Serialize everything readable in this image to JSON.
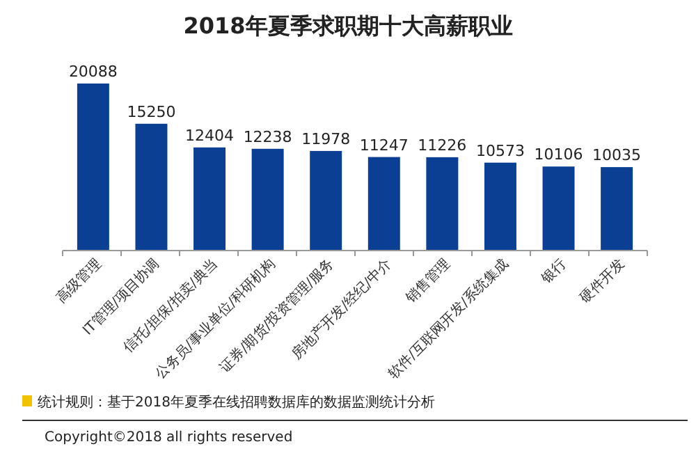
{
  "chart_data": {
    "type": "bar",
    "title": "2018年夏季求职期十大高薪职业",
    "categories": [
      "高级管理",
      "IT管理/项目协调",
      "信托/担保/拍卖/典当",
      "公务员/事业单位/科研机构",
      "证券/期货/投资管理/服务",
      "房地产开发/经纪/中介",
      "销售管理",
      "软件/互联网开发/系统集成",
      "银行",
      "硬件开发"
    ],
    "values": [
      20088,
      15250,
      12404,
      12238,
      11978,
      11247,
      11226,
      10573,
      10106,
      10035
    ],
    "color": "#0b3f94",
    "data_labels": true,
    "annotations": [
      "统计规则：基于2018年夏季在线招聘数据库的数据监测统计分析",
      "Copyright©2018 all rights reserved"
    ]
  }
}
